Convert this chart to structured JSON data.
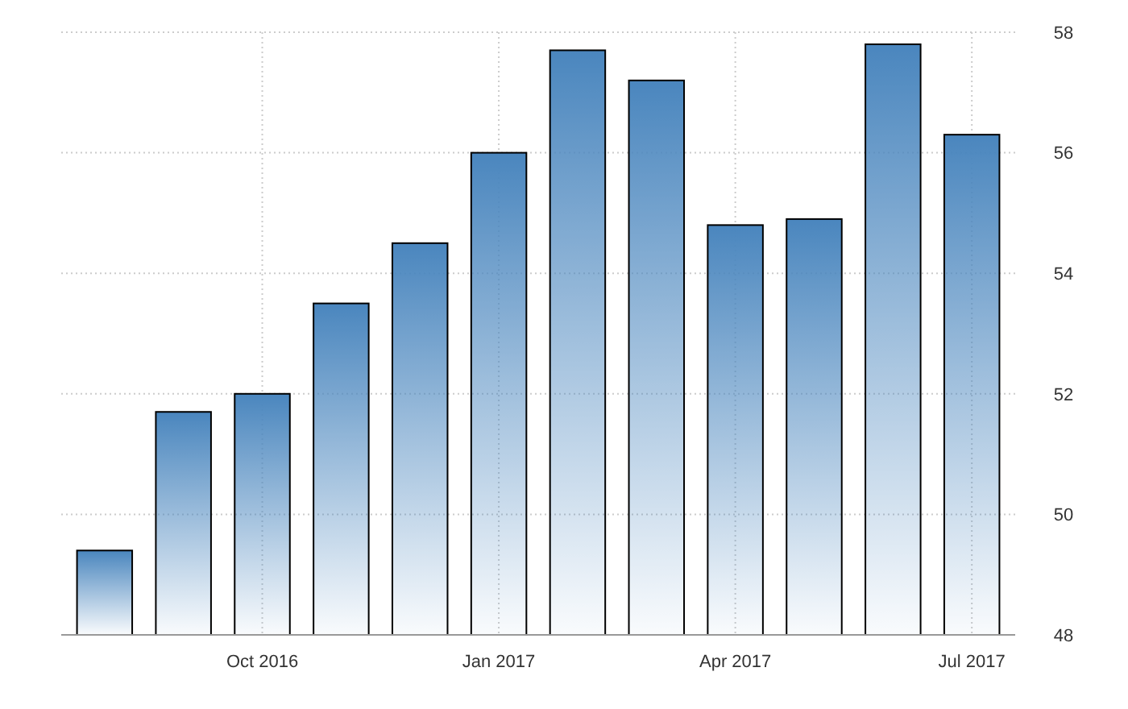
{
  "chart_data": {
    "type": "bar",
    "categories": [
      null,
      null,
      "Oct 2016",
      null,
      null,
      "Jan 2017",
      null,
      null,
      "Apr 2017",
      null,
      null,
      "Jul 2017"
    ],
    "values": [
      49.4,
      51.7,
      52.0,
      53.5,
      54.5,
      56.0,
      57.7,
      57.2,
      54.8,
      54.9,
      57.8,
      56.3
    ],
    "color": "#4a86be",
    "ylim": [
      48,
      58
    ],
    "yticks": [
      48,
      50,
      52,
      54,
      56,
      58
    ],
    "grid": true
  }
}
